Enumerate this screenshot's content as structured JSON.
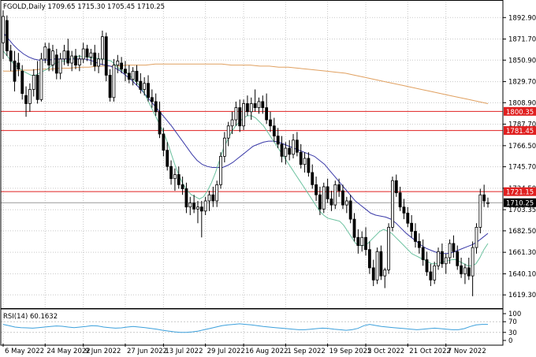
{
  "header": {
    "text": "FGOLD,Daily  1709.65 1715.30 1705.45 1710.25"
  },
  "rsi_label": "RSI(14) 60.1632",
  "price_axis": {
    "ticks": [
      "1892.90",
      "1871.70",
      "1850.90",
      "1829.70",
      "1808.90",
      "1787.70",
      "1766.50",
      "1745.70",
      "1724.50",
      "1703.35",
      "1682.50",
      "1661.30",
      "1640.10",
      "1619.30"
    ],
    "range": [
      1607,
      1904
    ]
  },
  "rsi_axis": {
    "ticks": [
      "100",
      "70",
      "30",
      "0"
    ],
    "range": [
      0,
      100
    ]
  },
  "time_axis": {
    "ticks": [
      "6 May 2022",
      "24 May 2022",
      "9 Jun 2022",
      "27 Jun 2022",
      "13 Jul 2022",
      "29 Jul 2022",
      "16 Aug 2022",
      "1 Sep 2022",
      "19 Sep 2022",
      "5 Oct 2022",
      "21 Oct 2022",
      "7 Nov 2022"
    ]
  },
  "levels": [
    {
      "value": 1800.35,
      "label": "1800.35",
      "color": "#e02020"
    },
    {
      "value": 1781.45,
      "label": "1781.45",
      "color": "#e02020"
    },
    {
      "value": 1721.15,
      "label": "1721.15",
      "color": "#e02020"
    }
  ],
  "current_price": {
    "value": 1710.25,
    "label": "1710.25"
  },
  "colors": {
    "ma_fast": "#6cc2a0",
    "ma_mid": "#3a3aa8",
    "ma_slow": "#e0a060",
    "rsi": "#3ca0dc",
    "candle": "#000000"
  },
  "chart_data": {
    "type": "candlestick",
    "candles": [
      {
        "o": 1868,
        "h": 1900,
        "l": 1852,
        "c": 1894
      },
      {
        "o": 1890,
        "h": 1895,
        "l": 1855,
        "c": 1860
      },
      {
        "o": 1860,
        "h": 1866,
        "l": 1840,
        "c": 1850
      },
      {
        "o": 1850,
        "h": 1860,
        "l": 1820,
        "c": 1830
      },
      {
        "o": 1848,
        "h": 1858,
        "l": 1835,
        "c": 1842
      },
      {
        "o": 1840,
        "h": 1846,
        "l": 1812,
        "c": 1818
      },
      {
        "o": 1816,
        "h": 1825,
        "l": 1795,
        "c": 1808
      },
      {
        "o": 1808,
        "h": 1828,
        "l": 1800,
        "c": 1822
      },
      {
        "o": 1822,
        "h": 1842,
        "l": 1815,
        "c": 1836
      },
      {
        "o": 1836,
        "h": 1850,
        "l": 1808,
        "c": 1812
      },
      {
        "o": 1812,
        "h": 1858,
        "l": 1810,
        "c": 1852
      },
      {
        "o": 1852,
        "h": 1868,
        "l": 1848,
        "c": 1864
      },
      {
        "o": 1862,
        "h": 1868,
        "l": 1840,
        "c": 1846
      },
      {
        "o": 1846,
        "h": 1866,
        "l": 1840,
        "c": 1860
      },
      {
        "o": 1856,
        "h": 1862,
        "l": 1832,
        "c": 1838
      },
      {
        "o": 1838,
        "h": 1858,
        "l": 1832,
        "c": 1852
      },
      {
        "o": 1852,
        "h": 1866,
        "l": 1846,
        "c": 1860
      },
      {
        "o": 1860,
        "h": 1872,
        "l": 1845,
        "c": 1848
      },
      {
        "o": 1848,
        "h": 1860,
        "l": 1840,
        "c": 1855
      },
      {
        "o": 1855,
        "h": 1862,
        "l": 1842,
        "c": 1846
      },
      {
        "o": 1846,
        "h": 1856,
        "l": 1840,
        "c": 1852
      },
      {
        "o": 1852,
        "h": 1868,
        "l": 1848,
        "c": 1862
      },
      {
        "o": 1862,
        "h": 1866,
        "l": 1850,
        "c": 1854
      },
      {
        "o": 1854,
        "h": 1862,
        "l": 1846,
        "c": 1858
      },
      {
        "o": 1858,
        "h": 1866,
        "l": 1840,
        "c": 1845
      },
      {
        "o": 1845,
        "h": 1858,
        "l": 1838,
        "c": 1852
      },
      {
        "o": 1852,
        "h": 1880,
        "l": 1846,
        "c": 1874
      },
      {
        "o": 1874,
        "h": 1878,
        "l": 1830,
        "c": 1836
      },
      {
        "o": 1836,
        "h": 1842,
        "l": 1810,
        "c": 1814
      },
      {
        "o": 1814,
        "h": 1852,
        "l": 1810,
        "c": 1846
      },
      {
        "o": 1846,
        "h": 1856,
        "l": 1838,
        "c": 1850
      },
      {
        "o": 1848,
        "h": 1854,
        "l": 1838,
        "c": 1842
      },
      {
        "o": 1842,
        "h": 1850,
        "l": 1830,
        "c": 1838
      },
      {
        "o": 1838,
        "h": 1846,
        "l": 1828,
        "c": 1832
      },
      {
        "o": 1832,
        "h": 1844,
        "l": 1826,
        "c": 1840
      },
      {
        "o": 1840,
        "h": 1846,
        "l": 1826,
        "c": 1830
      },
      {
        "o": 1830,
        "h": 1838,
        "l": 1818,
        "c": 1822
      },
      {
        "o": 1822,
        "h": 1834,
        "l": 1816,
        "c": 1828
      },
      {
        "o": 1828,
        "h": 1836,
        "l": 1810,
        "c": 1814
      },
      {
        "o": 1814,
        "h": 1822,
        "l": 1804,
        "c": 1810
      },
      {
        "o": 1810,
        "h": 1818,
        "l": 1796,
        "c": 1800
      },
      {
        "o": 1800,
        "h": 1810,
        "l": 1774,
        "c": 1778
      },
      {
        "o": 1778,
        "h": 1784,
        "l": 1756,
        "c": 1762
      },
      {
        "o": 1762,
        "h": 1770,
        "l": 1742,
        "c": 1746
      },
      {
        "o": 1746,
        "h": 1752,
        "l": 1728,
        "c": 1734
      },
      {
        "o": 1734,
        "h": 1744,
        "l": 1722,
        "c": 1738
      },
      {
        "o": 1738,
        "h": 1746,
        "l": 1724,
        "c": 1728
      },
      {
        "o": 1728,
        "h": 1736,
        "l": 1718,
        "c": 1724
      },
      {
        "o": 1724,
        "h": 1730,
        "l": 1700,
        "c": 1706
      },
      {
        "o": 1706,
        "h": 1716,
        "l": 1698,
        "c": 1710
      },
      {
        "o": 1710,
        "h": 1718,
        "l": 1700,
        "c": 1704
      },
      {
        "o": 1704,
        "h": 1712,
        "l": 1690,
        "c": 1706
      },
      {
        "o": 1706,
        "h": 1712,
        "l": 1676,
        "c": 1702
      },
      {
        "o": 1702,
        "h": 1716,
        "l": 1698,
        "c": 1712
      },
      {
        "o": 1712,
        "h": 1722,
        "l": 1702,
        "c": 1718
      },
      {
        "o": 1718,
        "h": 1726,
        "l": 1706,
        "c": 1712
      },
      {
        "o": 1712,
        "h": 1732,
        "l": 1706,
        "c": 1728
      },
      {
        "o": 1728,
        "h": 1760,
        "l": 1724,
        "c": 1756
      },
      {
        "o": 1756,
        "h": 1780,
        "l": 1750,
        "c": 1774
      },
      {
        "o": 1774,
        "h": 1790,
        "l": 1766,
        "c": 1786
      },
      {
        "o": 1786,
        "h": 1800,
        "l": 1778,
        "c": 1792
      },
      {
        "o": 1792,
        "h": 1810,
        "l": 1786,
        "c": 1804
      },
      {
        "o": 1804,
        "h": 1812,
        "l": 1780,
        "c": 1786
      },
      {
        "o": 1786,
        "h": 1812,
        "l": 1782,
        "c": 1808
      },
      {
        "o": 1808,
        "h": 1816,
        "l": 1796,
        "c": 1800
      },
      {
        "o": 1800,
        "h": 1814,
        "l": 1792,
        "c": 1808
      },
      {
        "o": 1808,
        "h": 1822,
        "l": 1800,
        "c": 1804
      },
      {
        "o": 1804,
        "h": 1814,
        "l": 1798,
        "c": 1810
      },
      {
        "o": 1810,
        "h": 1816,
        "l": 1798,
        "c": 1804
      },
      {
        "o": 1804,
        "h": 1818,
        "l": 1788,
        "c": 1792
      },
      {
        "o": 1792,
        "h": 1800,
        "l": 1780,
        "c": 1786
      },
      {
        "o": 1786,
        "h": 1794,
        "l": 1770,
        "c": 1776
      },
      {
        "o": 1776,
        "h": 1784,
        "l": 1764,
        "c": 1768
      },
      {
        "o": 1768,
        "h": 1776,
        "l": 1750,
        "c": 1756
      },
      {
        "o": 1756,
        "h": 1770,
        "l": 1748,
        "c": 1764
      },
      {
        "o": 1764,
        "h": 1772,
        "l": 1752,
        "c": 1758
      },
      {
        "o": 1758,
        "h": 1778,
        "l": 1754,
        "c": 1772
      },
      {
        "o": 1772,
        "h": 1780,
        "l": 1756,
        "c": 1760
      },
      {
        "o": 1760,
        "h": 1768,
        "l": 1744,
        "c": 1748
      },
      {
        "o": 1748,
        "h": 1760,
        "l": 1740,
        "c": 1754
      },
      {
        "o": 1754,
        "h": 1760,
        "l": 1736,
        "c": 1740
      },
      {
        "o": 1740,
        "h": 1748,
        "l": 1724,
        "c": 1728
      },
      {
        "o": 1728,
        "h": 1736,
        "l": 1712,
        "c": 1718
      },
      {
        "o": 1718,
        "h": 1726,
        "l": 1698,
        "c": 1704
      },
      {
        "o": 1704,
        "h": 1730,
        "l": 1700,
        "c": 1726
      },
      {
        "o": 1726,
        "h": 1734,
        "l": 1710,
        "c": 1714
      },
      {
        "o": 1714,
        "h": 1722,
        "l": 1702,
        "c": 1708
      },
      {
        "o": 1708,
        "h": 1732,
        "l": 1704,
        "c": 1728
      },
      {
        "o": 1728,
        "h": 1734,
        "l": 1716,
        "c": 1722
      },
      {
        "o": 1722,
        "h": 1728,
        "l": 1704,
        "c": 1708
      },
      {
        "o": 1708,
        "h": 1716,
        "l": 1700,
        "c": 1712
      },
      {
        "o": 1712,
        "h": 1718,
        "l": 1690,
        "c": 1694
      },
      {
        "o": 1694,
        "h": 1700,
        "l": 1672,
        "c": 1676
      },
      {
        "o": 1676,
        "h": 1684,
        "l": 1660,
        "c": 1668
      },
      {
        "o": 1668,
        "h": 1682,
        "l": 1662,
        "c": 1676
      },
      {
        "o": 1676,
        "h": 1686,
        "l": 1658,
        "c": 1664
      },
      {
        "o": 1664,
        "h": 1672,
        "l": 1640,
        "c": 1646
      },
      {
        "o": 1646,
        "h": 1654,
        "l": 1628,
        "c": 1634
      },
      {
        "o": 1634,
        "h": 1666,
        "l": 1630,
        "c": 1662
      },
      {
        "o": 1662,
        "h": 1668,
        "l": 1634,
        "c": 1638
      },
      {
        "o": 1638,
        "h": 1646,
        "l": 1626,
        "c": 1644
      },
      {
        "o": 1644,
        "h": 1690,
        "l": 1640,
        "c": 1686
      },
      {
        "o": 1686,
        "h": 1736,
        "l": 1682,
        "c": 1732
      },
      {
        "o": 1732,
        "h": 1738,
        "l": 1716,
        "c": 1720
      },
      {
        "o": 1720,
        "h": 1726,
        "l": 1702,
        "c": 1706
      },
      {
        "o": 1706,
        "h": 1714,
        "l": 1694,
        "c": 1700
      },
      {
        "o": 1700,
        "h": 1706,
        "l": 1686,
        "c": 1690
      },
      {
        "o": 1690,
        "h": 1698,
        "l": 1676,
        "c": 1682
      },
      {
        "o": 1682,
        "h": 1690,
        "l": 1666,
        "c": 1672
      },
      {
        "o": 1672,
        "h": 1680,
        "l": 1660,
        "c": 1666
      },
      {
        "o": 1666,
        "h": 1674,
        "l": 1648,
        "c": 1654
      },
      {
        "o": 1654,
        "h": 1662,
        "l": 1638,
        "c": 1642
      },
      {
        "o": 1642,
        "h": 1650,
        "l": 1628,
        "c": 1634
      },
      {
        "o": 1634,
        "h": 1652,
        "l": 1630,
        "c": 1648
      },
      {
        "o": 1648,
        "h": 1666,
        "l": 1644,
        "c": 1662
      },
      {
        "o": 1662,
        "h": 1670,
        "l": 1646,
        "c": 1650
      },
      {
        "o": 1650,
        "h": 1660,
        "l": 1640,
        "c": 1656
      },
      {
        "o": 1656,
        "h": 1674,
        "l": 1650,
        "c": 1670
      },
      {
        "o": 1670,
        "h": 1678,
        "l": 1656,
        "c": 1662
      },
      {
        "o": 1662,
        "h": 1668,
        "l": 1644,
        "c": 1648
      },
      {
        "o": 1648,
        "h": 1656,
        "l": 1636,
        "c": 1640
      },
      {
        "o": 1640,
        "h": 1650,
        "l": 1630,
        "c": 1646
      },
      {
        "o": 1646,
        "h": 1656,
        "l": 1634,
        "c": 1638
      },
      {
        "o": 1638,
        "h": 1672,
        "l": 1618,
        "c": 1666
      },
      {
        "o": 1666,
        "h": 1690,
        "l": 1660,
        "c": 1686
      },
      {
        "o": 1686,
        "h": 1724,
        "l": 1680,
        "c": 1718
      },
      {
        "o": 1718,
        "h": 1728,
        "l": 1706,
        "c": 1712
      },
      {
        "o": 1709.65,
        "h": 1715.3,
        "l": 1705.45,
        "c": 1710.25
      }
    ],
    "ma_fast": [
      1860,
      1855,
      1850,
      1846,
      1843,
      1840,
      1838,
      1836,
      1836,
      1838,
      1840,
      1842,
      1845,
      1848,
      1849,
      1850,
      1850,
      1852,
      1854,
      1855,
      1854,
      1854,
      1853,
      1853,
      1852,
      1852,
      1851,
      1850,
      1846,
      1842,
      1840,
      1838,
      1834,
      1830,
      1826,
      1820,
      1812,
      1804,
      1796,
      1788,
      1780,
      1770,
      1758,
      1746,
      1736,
      1728,
      1722,
      1718,
      1716,
      1714,
      1716,
      1722,
      1730,
      1740,
      1752,
      1764,
      1772,
      1780,
      1786,
      1790,
      1794,
      1796,
      1796,
      1794,
      1790,
      1786,
      1780,
      1774,
      1768,
      1762,
      1756,
      1750,
      1744,
      1738,
      1732,
      1726,
      1720,
      1714,
      1708,
      1702,
      1698,
      1695,
      1694,
      1693,
      1692,
      1688,
      1682,
      1676,
      1670,
      1668,
      1668,
      1670,
      1674,
      1678,
      1682,
      1684,
      1682,
      1680,
      1676,
      1672,
      1668,
      1664,
      1660,
      1658,
      1656,
      1654,
      1652,
      1650,
      1650,
      1651,
      1652,
      1653,
      1654,
      1654,
      1652,
      1650,
      1648,
      1648,
      1650,
      1656,
      1664,
      1670
    ],
    "ma_mid": [
      1878,
      1872,
      1866,
      1861,
      1857,
      1854,
      1852,
      1851,
      1851,
      1851,
      1852,
      1852,
      1852,
      1852,
      1852,
      1852,
      1852,
      1851,
      1849,
      1847,
      1846,
      1845,
      1843,
      1840,
      1836,
      1832,
      1827,
      1822,
      1816,
      1810,
      1804,
      1798,
      1792,
      1786,
      1779,
      1772,
      1765,
      1758,
      1752,
      1748,
      1746,
      1745,
      1745,
      1745,
      1747,
      1750,
      1754,
      1758,
      1762,
      1766,
      1768,
      1770,
      1771,
      1771,
      1770,
      1768,
      1766,
      1764,
      1762,
      1760,
      1758,
      1756,
      1752,
      1748,
      1742,
      1736,
      1730,
      1724,
      1718,
      1712,
      1708,
      1704,
      1700,
      1698,
      1697,
      1696,
      1694,
      1690,
      1685,
      1680,
      1676,
      1672,
      1668,
      1665,
      1663,
      1661,
      1660,
      1660,
      1661,
      1663,
      1665,
      1667,
      1669,
      1672,
      1676,
      1680
    ],
    "ma_slow": [
      1840,
      1840,
      1841,
      1841,
      1842,
      1842,
      1843,
      1843,
      1844,
      1844,
      1845,
      1845,
      1845,
      1846,
      1846,
      1846,
      1847,
      1847,
      1847,
      1847,
      1847,
      1847,
      1847,
      1847,
      1846,
      1846,
      1846,
      1845,
      1845,
      1844,
      1844,
      1843,
      1842,
      1841,
      1840,
      1839,
      1838,
      1836,
      1834,
      1832,
      1830,
      1828,
      1826,
      1824,
      1822,
      1820,
      1818,
      1816,
      1814,
      1812,
      1810,
      1808
    ],
    "rsi": [
      60,
      55,
      50,
      48,
      47,
      46,
      48,
      50,
      52,
      54,
      53,
      50,
      48,
      50,
      52,
      55,
      54,
      50,
      48,
      46,
      47,
      50,
      52,
      50,
      48,
      45,
      42,
      38,
      35,
      32,
      30,
      30,
      32,
      35,
      40,
      45,
      50,
      55,
      58,
      60,
      62,
      60,
      58,
      55,
      52,
      50,
      48,
      46,
      44,
      42,
      40,
      40,
      42,
      44,
      46,
      45,
      42,
      40,
      38,
      40,
      45,
      55,
      60,
      56,
      52,
      50,
      48,
      46,
      44,
      42,
      40,
      42,
      44,
      46,
      44,
      42,
      40,
      40,
      44,
      52,
      58,
      60,
      60
    ]
  }
}
